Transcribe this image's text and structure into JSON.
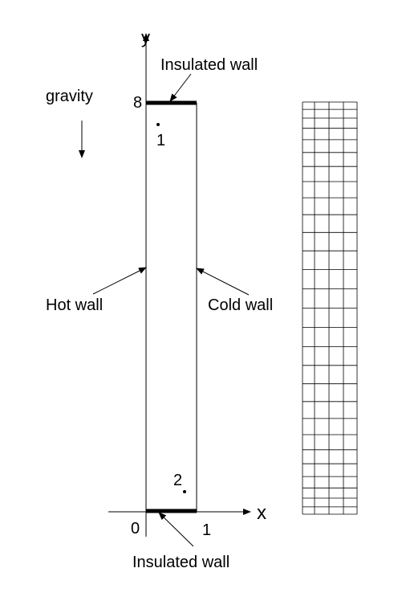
{
  "labels": {
    "y_axis": "y",
    "x_axis": "x",
    "origin": "0",
    "y_max": "8",
    "x_max": "1",
    "gravity": "gravity",
    "top_wall": "Insulated wall",
    "bottom_wall": "Insulated wall",
    "hot_wall": "Hot wall",
    "cold_wall": "Cold wall",
    "point_1": "1",
    "point_2": "2"
  },
  "domain": {
    "width": 1,
    "height": 8
  },
  "mesh": {
    "columns": 4,
    "rows": 28,
    "stretching": "refined near top and bottom walls"
  },
  "colors": {
    "ink": "#000000",
    "background": "#ffffff"
  }
}
